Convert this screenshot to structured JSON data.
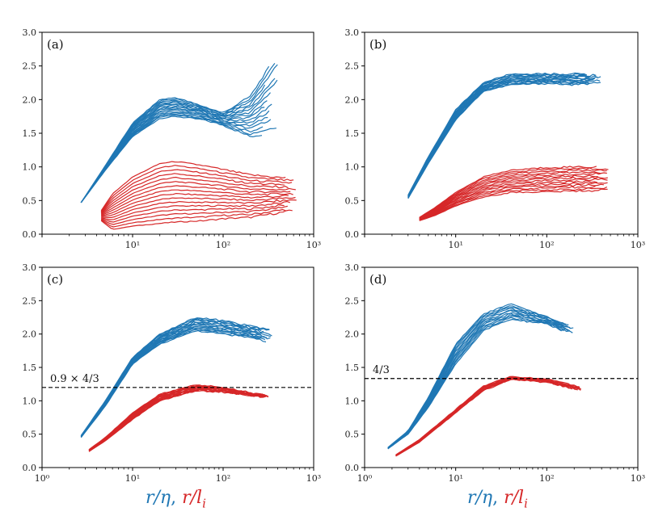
{
  "chart_data": [
    {
      "type": "line",
      "panel": "(a)",
      "xscale": "log",
      "xlim": [
        1,
        1000
      ],
      "ylim": [
        0.0,
        3.0
      ],
      "x_ticks": [
        "10¹",
        "10²",
        "10³"
      ],
      "y_ticks": [
        "0.0",
        "0.5",
        "1.0",
        "1.5",
        "2.0",
        "2.5",
        "3.0"
      ],
      "show_x_ticks_from_1": false,
      "series": [
        {
          "name": "r/η (blue)",
          "color": "#1f77b4",
          "x": [
            2.7,
            5,
            10,
            20,
            30,
            60,
            100,
            200,
            400
          ],
          "y_min": [
            0.47,
            0.95,
            1.45,
            1.72,
            1.75,
            1.7,
            1.62,
            1.45,
            1.52
          ],
          "y_max": [
            0.47,
            1.02,
            1.65,
            2.0,
            2.03,
            1.9,
            1.8,
            2.05,
            2.68
          ],
          "count": 16
        },
        {
          "name": "r/l_i (red)",
          "color": "#d62728",
          "x": [
            4.5,
            6,
            10,
            20,
            30,
            60,
            100,
            200,
            650
          ],
          "y_min": [
            0.2,
            0.07,
            0.12,
            0.16,
            0.18,
            0.2,
            0.23,
            0.25,
            0.36
          ],
          "y_max": [
            0.35,
            0.6,
            0.85,
            1.05,
            1.08,
            1.02,
            0.96,
            0.88,
            0.82
          ],
          "count": 16
        }
      ],
      "ref_line": null
    },
    {
      "type": "line",
      "panel": "(b)",
      "xscale": "log",
      "xlim": [
        1,
        1000
      ],
      "ylim": [
        0.0,
        3.0
      ],
      "x_ticks": [
        "10¹",
        "10²",
        "10³"
      ],
      "y_ticks": [
        "0.0",
        "0.5",
        "1.0",
        "1.5",
        "2.0",
        "2.5",
        "3.0"
      ],
      "series": [
        {
          "name": "r/η (blue)",
          "color": "#1f77b4",
          "x": [
            3,
            5,
            10,
            20,
            40,
            100,
            200,
            400
          ],
          "y_min": [
            0.53,
            1.05,
            1.7,
            2.12,
            2.22,
            2.24,
            2.22,
            2.24
          ],
          "y_max": [
            0.58,
            1.15,
            1.85,
            2.25,
            2.38,
            2.38,
            2.38,
            2.38
          ],
          "count": 14
        },
        {
          "name": "r/l_i (red)",
          "color": "#d62728",
          "x": [
            4,
            6,
            10,
            20,
            40,
            100,
            200,
            500
          ],
          "y_min": [
            0.2,
            0.28,
            0.42,
            0.55,
            0.62,
            0.63,
            0.64,
            0.66
          ],
          "y_max": [
            0.25,
            0.4,
            0.62,
            0.85,
            0.95,
            0.99,
            1.0,
            1.0
          ],
          "count": 14
        }
      ],
      "ref_line": null
    },
    {
      "type": "line",
      "panel": "(c)",
      "xscale": "log",
      "xlim": [
        1,
        1000
      ],
      "ylim": [
        0.0,
        3.0
      ],
      "x_ticks": [
        "10⁰",
        "10¹",
        "10²",
        "10³"
      ],
      "y_ticks": [
        "0.0",
        "0.5",
        "1.0",
        "1.5",
        "2.0",
        "2.5",
        "3.0"
      ],
      "series": [
        {
          "name": "r/η (blue)",
          "color": "#1f77b4",
          "x": [
            2.7,
            5,
            10,
            20,
            50,
            100,
            200,
            350
          ],
          "y_min": [
            0.45,
            0.92,
            1.55,
            1.85,
            2.05,
            2.0,
            1.95,
            1.86
          ],
          "y_max": [
            0.48,
            1.0,
            1.65,
            2.0,
            2.25,
            2.2,
            2.12,
            2.06
          ],
          "count": 14
        },
        {
          "name": "r/l_i (red)",
          "color": "#d62728",
          "x": [
            3.3,
            5,
            10,
            20,
            50,
            100,
            200,
            350
          ],
          "y_min": [
            0.24,
            0.4,
            0.72,
            1.0,
            1.15,
            1.13,
            1.08,
            1.05
          ],
          "y_max": [
            0.27,
            0.45,
            0.82,
            1.1,
            1.24,
            1.2,
            1.12,
            1.08
          ],
          "count": 14
        }
      ],
      "ref_line": {
        "y": 1.2,
        "label": "0.9 × 4/3"
      }
    },
    {
      "type": "line",
      "panel": "(d)",
      "xscale": "log",
      "xlim": [
        1,
        1000
      ],
      "ylim": [
        0.0,
        3.0
      ],
      "x_ticks": [
        "10⁰",
        "10¹",
        "10²",
        "10³"
      ],
      "y_ticks": [
        "0.0",
        "0.5",
        "1.0",
        "1.5",
        "2.0",
        "2.5",
        "3.0"
      ],
      "series": [
        {
          "name": "r/η (blue)",
          "color": "#1f77b4",
          "x": [
            1.8,
            3,
            5,
            10,
            20,
            40,
            100,
            200
          ],
          "y_min": [
            0.28,
            0.5,
            0.9,
            1.55,
            2.05,
            2.22,
            2.15,
            1.98
          ],
          "y_max": [
            0.3,
            0.55,
            1.05,
            1.85,
            2.3,
            2.45,
            2.25,
            2.1
          ],
          "count": 12
        },
        {
          "name": "r/l_i (red)",
          "color": "#d62728",
          "x": [
            2.2,
            4,
            10,
            20,
            40,
            100,
            240
          ],
          "y_min": [
            0.17,
            0.38,
            0.82,
            1.15,
            1.32,
            1.28,
            1.15
          ],
          "y_max": [
            0.19,
            0.42,
            0.87,
            1.22,
            1.36,
            1.32,
            1.2
          ],
          "count": 12
        }
      ],
      "ref_line": {
        "y": 1.3333,
        "label": "4/3"
      }
    }
  ],
  "xlabel": {
    "blue": "r/η",
    "separator": ",",
    "red": "r/l",
    "red_subscript": "i"
  },
  "colors": {
    "blue": "#1f77b4",
    "red": "#d62728",
    "axis": "#000000"
  }
}
